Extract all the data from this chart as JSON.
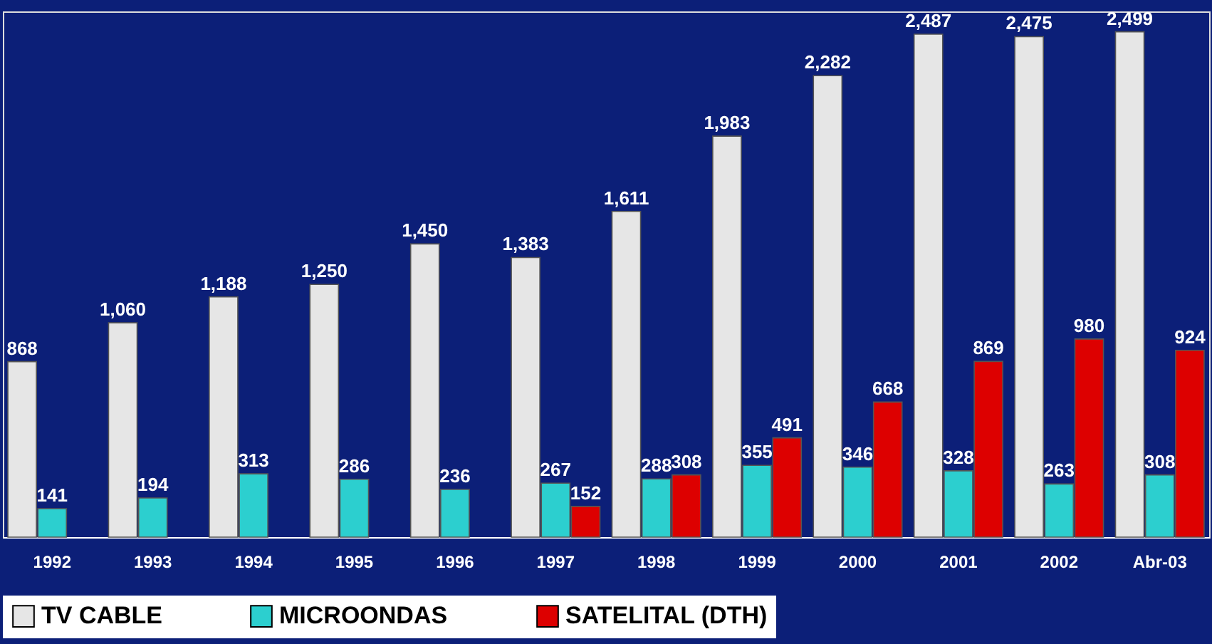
{
  "chart_data": {
    "type": "bar",
    "categories": [
      "1992",
      "1993",
      "1994",
      "1995",
      "1996",
      "1997",
      "1998",
      "1999",
      "2000",
      "2001",
      "2002",
      "Abr-03"
    ],
    "series": [
      {
        "name": "TV CABLE",
        "color": "#e6e6e6",
        "values": [
          868,
          1060,
          1188,
          1250,
          1450,
          1383,
          1611,
          1983,
          2282,
          2487,
          2475,
          2499
        ],
        "value_labels": [
          "868",
          "1,060",
          "1,188",
          "1,250",
          "1,450",
          "1,383",
          "1,611",
          "1,983",
          "2,282",
          "2,487",
          "2,475",
          "2,499"
        ]
      },
      {
        "name": "MICROONDAS",
        "color": "#2ccfcf",
        "values": [
          141,
          194,
          313,
          286,
          236,
          267,
          288,
          355,
          346,
          328,
          263,
          308
        ],
        "value_labels": [
          "141",
          "194",
          "313",
          "286",
          "236",
          "267",
          "288",
          "355",
          "346",
          "328",
          "263",
          "308"
        ]
      },
      {
        "name": "SATELITAL (DTH)",
        "color": "#dd0000",
        "values": [
          null,
          null,
          null,
          null,
          null,
          152,
          308,
          491,
          668,
          869,
          980,
          924
        ],
        "value_labels": [
          null,
          null,
          null,
          null,
          null,
          "152",
          "308",
          "491",
          "668",
          "869",
          "980",
          "924"
        ]
      }
    ],
    "legend": "bottom",
    "grid": false,
    "tick_labels": "x",
    "ylim": [
      0,
      2600
    ]
  }
}
